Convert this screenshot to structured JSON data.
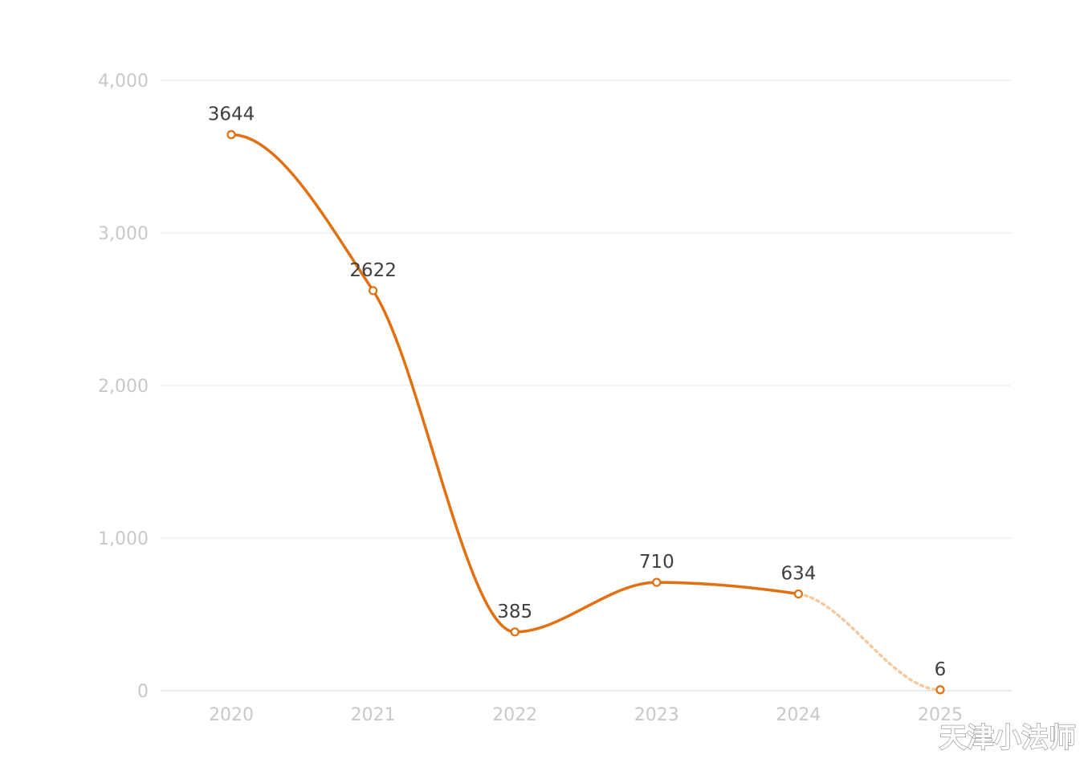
{
  "chart_data": {
    "type": "line",
    "categories": [
      "2020",
      "2021",
      "2022",
      "2023",
      "2024",
      "2025"
    ],
    "values": [
      3644,
      2622,
      385,
      710,
      634,
      6
    ],
    "data_labels": [
      "3644",
      "2622",
      "385",
      "710",
      "634",
      "6"
    ],
    "ylim": [
      0,
      4000
    ],
    "yticks": [
      0,
      1000,
      2000,
      3000,
      4000
    ],
    "ytick_labels": [
      "0",
      "1,000",
      "2,000",
      "3,000",
      "4,000"
    ],
    "grid": true,
    "line_color": "#e07010",
    "projected_color": "#f5c9a0",
    "projected_from_index": 4,
    "title": "",
    "xlabel": "",
    "ylabel": ""
  },
  "watermark": "天津小法师"
}
